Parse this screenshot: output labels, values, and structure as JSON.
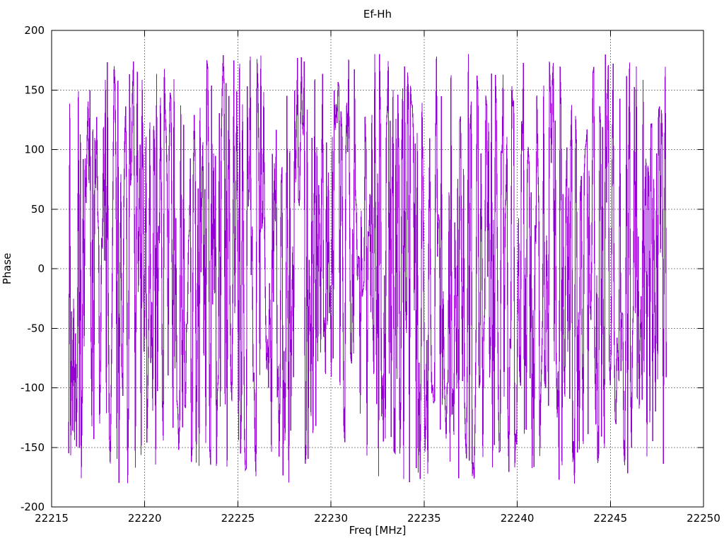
{
  "chart_data": {
    "type": "line",
    "title": "Ef-Hh",
    "xlabel": "Freq [MHz]",
    "ylabel": "Phase",
    "xlim": [
      22215,
      22250
    ],
    "ylim": [
      -200,
      200
    ],
    "x_ticks": [
      22215,
      22220,
      22225,
      22230,
      22235,
      22240,
      22245,
      22250
    ],
    "y_ticks": [
      -200,
      -150,
      -100,
      -50,
      0,
      50,
      100,
      150,
      200
    ],
    "grid": true,
    "legend": "none",
    "line_color": "#9400d3",
    "grid_color": "#848484",
    "border_color": "#000000",
    "series": [
      {
        "name": "Ef-Hh",
        "description": "Wrapped interferometric phase vs frequency; noisy wrapped phase spanning [-181,181] degrees, dense vertical strokes frequently reaching the extremes",
        "synthesis": {
          "model": "independent-extreme-biased",
          "seed": 99,
          "n_points": 620,
          "x_start": 22215.92,
          "x_end": 22248.0,
          "distribution": "power",
          "power_exponent": 0.72,
          "y_amplitude": 181
        }
      }
    ]
  }
}
